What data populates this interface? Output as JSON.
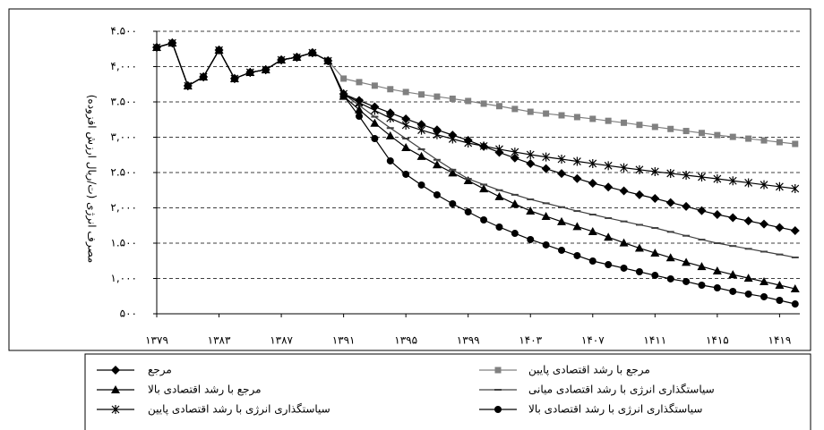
{
  "chart_data": {
    "type": "line",
    "y_label": "مصرف انرژی (ت/ریال ارزش افزوده)",
    "x": [
      1379,
      1380,
      1381,
      1382,
      1383,
      1384,
      1385,
      1386,
      1387,
      1388,
      1389,
      1390,
      1391,
      1392,
      1393,
      1394,
      1395,
      1396,
      1397,
      1398,
      1399,
      1400,
      1401,
      1402,
      1403,
      1404,
      1405,
      1406,
      1407,
      1408,
      1409,
      1410,
      1411,
      1412,
      1413,
      1414,
      1415,
      1416,
      1417,
      1418,
      1419,
      1420
    ],
    "xlim": [
      1379,
      1420.3
    ],
    "xticks": [
      {
        "value": 1379,
        "label": "۱۳۷۹"
      },
      {
        "value": 1383,
        "label": "۱۳۸۳"
      },
      {
        "value": 1387,
        "label": "۱۳۸۷"
      },
      {
        "value": 1391,
        "label": "۱۳۹۱"
      },
      {
        "value": 1395,
        "label": "۱۳۹۵"
      },
      {
        "value": 1399,
        "label": "۱۳۹۹"
      },
      {
        "value": 1403,
        "label": "۱۴۰۳"
      },
      {
        "value": 1407,
        "label": "۱۴۰۷"
      },
      {
        "value": 1411,
        "label": "۱۴۱۱"
      },
      {
        "value": 1415,
        "label": "۱۴۱۵"
      },
      {
        "value": 1419,
        "label": "۱۴۱۹"
      }
    ],
    "ylim": [
      500,
      4500
    ],
    "yticks": [
      {
        "value": 500,
        "label": "۵۰۰"
      },
      {
        "value": 1000,
        "label": "۱,۰۰۰"
      },
      {
        "value": 1500,
        "label": "۱.۵۰۰"
      },
      {
        "value": 2000,
        "label": "۲,۰۰۰"
      },
      {
        "value": 2500,
        "label": "۲.۵۰۰"
      },
      {
        "value": 3000,
        "label": "۳,۰۰۰"
      },
      {
        "value": 3500,
        "label": "۳.۵۰۰"
      },
      {
        "value": 4000,
        "label": "۴,۰۰۰"
      },
      {
        "value": 4500,
        "label": "۴.۵۰۰"
      }
    ],
    "grid": true,
    "series": [
      {
        "name": "مرجع",
        "color": "#000000",
        "marker": "diamond",
        "values": [
          4272,
          4335,
          3728,
          3855,
          4234,
          3830,
          3918,
          3956,
          4095,
          4133,
          4196,
          4082,
          3614,
          3520,
          3430,
          3345,
          3260,
          3180,
          3105,
          3030,
          2956,
          2870,
          2785,
          2705,
          2627,
          2555,
          2485,
          2415,
          2348,
          2295,
          2240,
          2185,
          2133,
          2075,
          2020,
          1960,
          1905,
          1860,
          1815,
          1770,
          1722,
          1677
        ]
      },
      {
        "name": "مرجع با رشد اقتصادی پایین",
        "color": "#808080",
        "marker": "square",
        "values": [
          4272,
          4335,
          3728,
          3855,
          4234,
          3830,
          3918,
          3956,
          4095,
          4133,
          4196,
          4082,
          3830,
          3780,
          3730,
          3680,
          3640,
          3605,
          3575,
          3545,
          3513,
          3475,
          3440,
          3400,
          3360,
          3335,
          3310,
          3285,
          3260,
          3232,
          3205,
          3175,
          3146,
          3117,
          3088,
          3060,
          3030,
          3005,
          2980,
          2955,
          2930,
          2905
        ]
      },
      {
        "name": "مرجع با رشد اقتصادی بالا",
        "color": "#000000",
        "marker": "triangle",
        "values": [
          4272,
          4335,
          3728,
          3855,
          4234,
          3830,
          3918,
          3956,
          4095,
          4133,
          4196,
          4082,
          3580,
          3390,
          3200,
          3020,
          2854,
          2730,
          2610,
          2495,
          2386,
          2270,
          2160,
          2055,
          1956,
          1880,
          1805,
          1735,
          1665,
          1585,
          1505,
          1430,
          1361,
          1295,
          1230,
          1170,
          1108,
          1055,
          1005,
          955,
          905,
          854
        ]
      },
      {
        "name": "سیاستگذاری انرژی با رشد اقتصادی میانی",
        "color": "#404040",
        "marker": "dash",
        "values": [
          4272,
          4335,
          3728,
          3855,
          4234,
          3830,
          3918,
          3956,
          4095,
          4133,
          4196,
          4082,
          3614,
          3450,
          3290,
          3130,
          2981,
          2830,
          2680,
          2540,
          2411,
          2330,
          2250,
          2185,
          2120,
          2065,
          2010,
          1955,
          1905,
          1855,
          1808,
          1760,
          1715,
          1660,
          1605,
          1550,
          1500,
          1460,
          1420,
          1380,
          1340,
          1298
        ]
      },
      {
        "name": "سیاستگذاری انرژی با رشد اقتصادی پایین",
        "color": "#000000",
        "marker": "asterisk",
        "values": [
          4272,
          4335,
          3728,
          3855,
          4234,
          3830,
          3918,
          3956,
          4095,
          4133,
          4196,
          4082,
          3614,
          3490,
          3380,
          3270,
          3171,
          3100,
          3035,
          2975,
          2918,
          2875,
          2830,
          2790,
          2753,
          2720,
          2690,
          2658,
          2627,
          2597,
          2568,
          2540,
          2513,
          2488,
          2462,
          2437,
          2411,
          2383,
          2355,
          2327,
          2300,
          2272
        ]
      },
      {
        "name": "سیاستگذاری انرژی با رشد اقتصادی بالا",
        "color": "#000000",
        "marker": "circle",
        "values": [
          4272,
          4335,
          3728,
          3855,
          4234,
          3830,
          3918,
          3956,
          4095,
          4133,
          4196,
          4082,
          3589,
          3297,
          2981,
          2665,
          2475,
          2323,
          2184,
          2057,
          1943,
          1829,
          1728,
          1639,
          1551,
          1475,
          1399,
          1323,
          1247,
          1196,
          1146,
          1095,
          1044,
          994,
          956,
          905,
          867,
          817,
          779,
          741,
          690,
          639
        ]
      }
    ]
  }
}
